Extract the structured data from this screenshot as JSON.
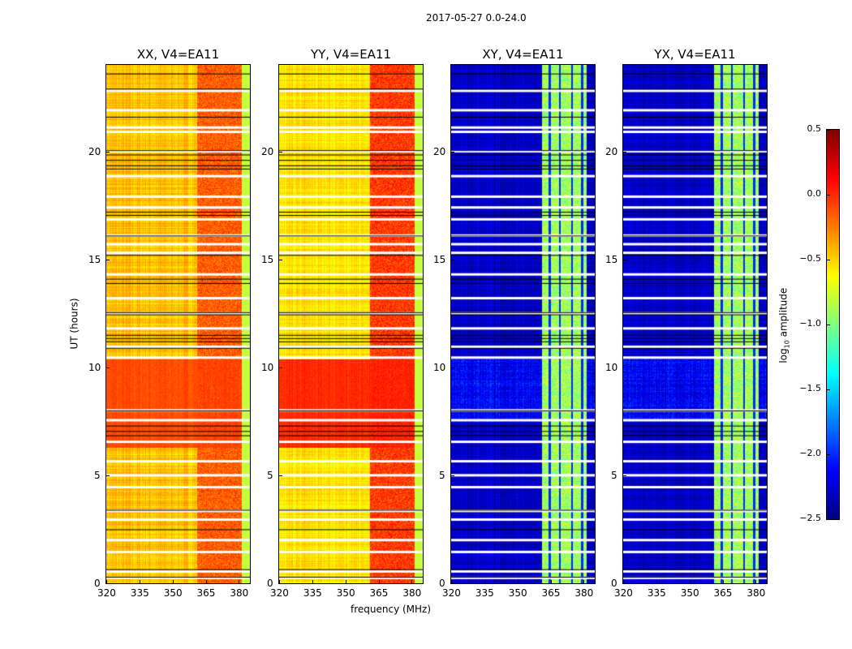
{
  "chart_data": {
    "type": "heatmap",
    "suptitle": "2017-05-27 0.0-24.0",
    "xlabel": "frequency (MHz)",
    "ylabel": "UT (hours)",
    "xlim": [
      320,
      385
    ],
    "ylim": [
      0,
      24
    ],
    "xticks": [
      "320",
      "335",
      "350",
      "365",
      "380"
    ],
    "yticks": [
      "0",
      "5",
      "10",
      "15",
      "20"
    ],
    "colorbar": {
      "label": "log10 amplitude",
      "label_main": "log",
      "label_sub": "10",
      "label_rest": " amplitude",
      "range": [
        -2.5,
        0.5
      ],
      "ticks": [
        "0.5",
        "0.0",
        "−0.5",
        "−1.0",
        "−1.5",
        "−2.0",
        "−2.5"
      ],
      "colormap": "jet"
    },
    "panels": [
      {
        "title": "XX, V4=EA11",
        "kind": "parallel",
        "base": -0.45,
        "band_level": -0.15,
        "high_hours": [
          6.3,
          10.4
        ],
        "high_level": -0.1
      },
      {
        "title": "YY, V4=EA11",
        "kind": "parallel",
        "base": -0.55,
        "band_level": -0.05,
        "high_hours": [
          6.3,
          10.4
        ],
        "high_level": 0.0
      },
      {
        "title": "XY, V4=EA11",
        "kind": "cross",
        "base": -2.3,
        "band_level": -0.9
      },
      {
        "title": "YX, V4=EA11",
        "kind": "cross",
        "base": -2.3,
        "band_level": -0.9
      }
    ],
    "rfi_band_mhz": [
      361,
      381
    ],
    "dark_channels_mhz": [
      364.5,
      369,
      374.5,
      379
    ],
    "flagged_hours": [
      0.25,
      0.55,
      1.45,
      2.0,
      2.95,
      3.35,
      4.45,
      5.0,
      5.65,
      6.55,
      7.55,
      8.0,
      10.45,
      10.95,
      11.8,
      12.5,
      13.2,
      14.3,
      15.3,
      15.7,
      16.1,
      16.85,
      17.4,
      17.9,
      18.85,
      20.0,
      20.9,
      21.1,
      21.9,
      22.8
    ],
    "black_line_hours": [
      0.3,
      0.65,
      2.5,
      3.4,
      6.85,
      7.05,
      7.3,
      8.0,
      10.9,
      11.2,
      11.35,
      11.5,
      12.45,
      12.55,
      13.9,
      14.1,
      15.2,
      16.1,
      17.05,
      17.2,
      19.2,
      19.35,
      19.6,
      19.85,
      20.05,
      21.6,
      22.9,
      23.6
    ]
  }
}
